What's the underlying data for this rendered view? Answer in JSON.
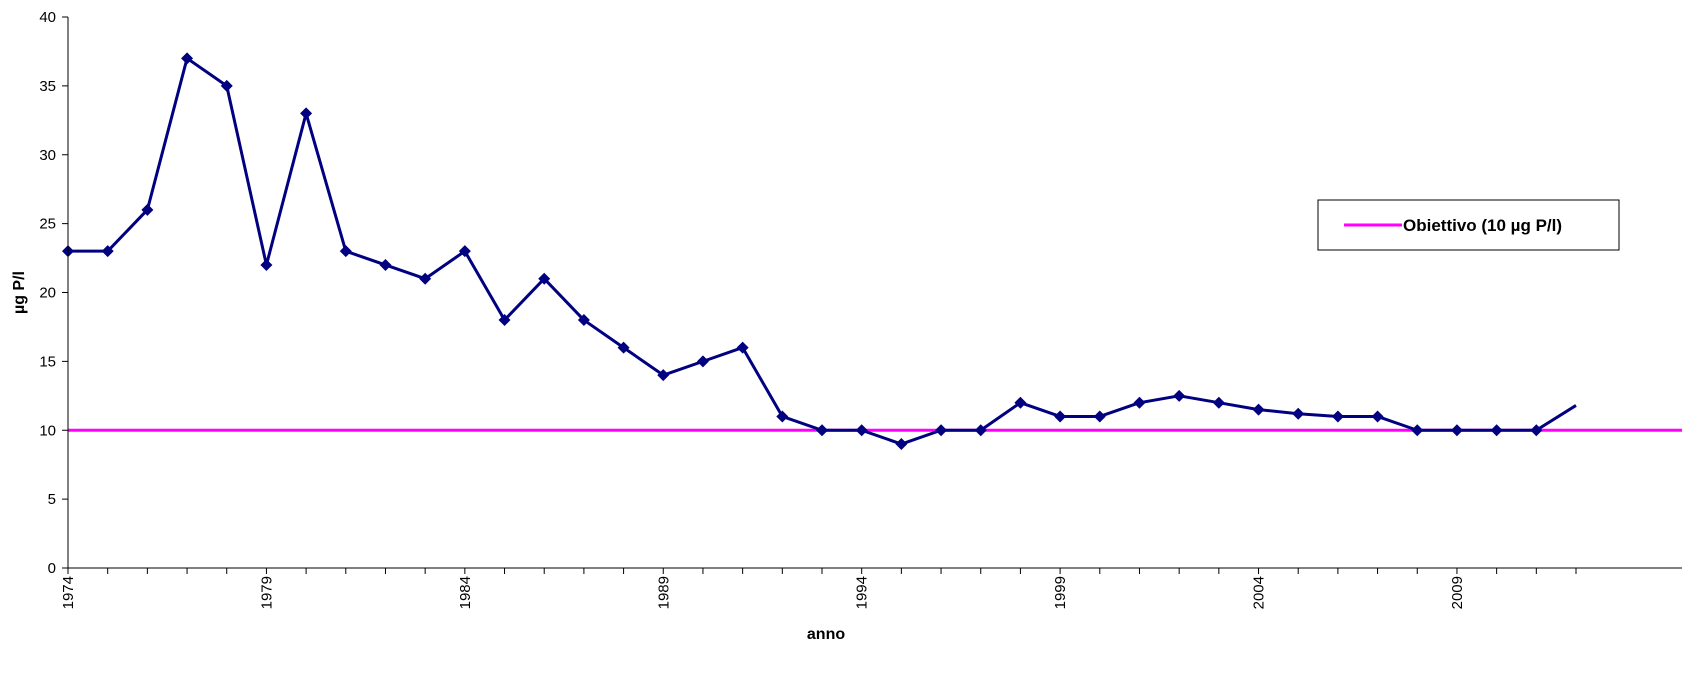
{
  "chart_data": {
    "type": "line",
    "xlabel": "anno",
    "ylabel": "µg P/l",
    "xlim": [
      1974,
      2012
    ],
    "ylim": [
      0,
      40
    ],
    "y_ticks": [
      0,
      5,
      10,
      15,
      20,
      25,
      30,
      35,
      40
    ],
    "x_tick_labels": [
      "1974",
      "1979",
      "1984",
      "1989",
      "1994",
      "1999",
      "2004",
      "2009"
    ],
    "grid": false,
    "legend_position": "right",
    "series": [
      {
        "color": "#000080",
        "marker": "diamond",
        "x": [
          1974,
          1975,
          1976,
          1977,
          1978,
          1979,
          1980,
          1981,
          1982,
          1983,
          1984,
          1985,
          1986,
          1987,
          1988,
          1989,
          1990,
          1991,
          1992,
          1993,
          1994,
          1995,
          1996,
          1997,
          1998,
          1999,
          2000,
          2001,
          2002,
          2003,
          2004,
          2005,
          2006,
          2007,
          2008,
          2009,
          2010,
          2011,
          2012
        ],
        "values": [
          23,
          23,
          26,
          37,
          35,
          22,
          33,
          23,
          22,
          21,
          23,
          18,
          21,
          18,
          16,
          14,
          15,
          16,
          11,
          10,
          10,
          9,
          10,
          10,
          12,
          11,
          11,
          12,
          12.5,
          12,
          11.5,
          11.2,
          11,
          11,
          10,
          10,
          10,
          10,
          11.8
        ]
      },
      {
        "name": "Obiettivo (10 µg P/l)",
        "color": "#ff00ff",
        "constant": 10
      }
    ]
  }
}
